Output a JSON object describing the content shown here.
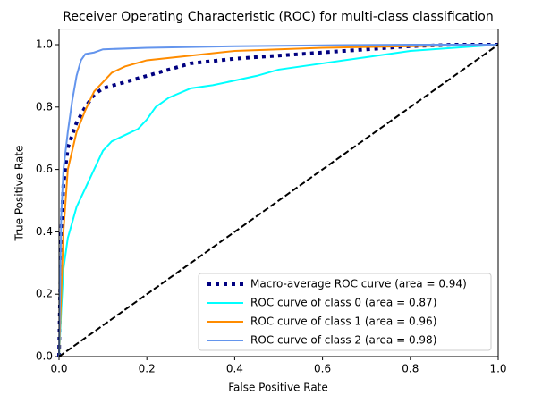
{
  "chart_data": {
    "type": "line",
    "title": "Receiver Operating Characteristic (ROC) for multi-class classification",
    "xlabel": "False Positive Rate",
    "ylabel": "True Positive Rate",
    "xlim": [
      0,
      1.0
    ],
    "ylim": [
      0,
      1.05
    ],
    "xticks": [
      {
        "value": 0,
        "label": "0.0"
      },
      0.2,
      0.4,
      0.6,
      0.8,
      {
        "value": 1,
        "label": "1.0"
      }
    ],
    "yticks": [
      {
        "value": 0,
        "label": "0.0"
      },
      0.2,
      0.4,
      0.6,
      0.8,
      {
        "value": 1,
        "label": "1.0"
      }
    ],
    "grid": false,
    "legend": "lower right",
    "series": [
      {
        "name": "Macro-average ROC curve (area = 0.94)",
        "color": "#000080",
        "linestyle": "dotted",
        "linewidth": 4,
        "x": [
          0,
          0.005,
          0.01,
          0.02,
          0.04,
          0.06,
          0.08,
          0.1,
          0.15,
          0.2,
          0.25,
          0.3,
          0.4,
          0.5,
          0.6,
          0.7,
          0.8,
          0.9,
          1
        ],
        "values": [
          0,
          0.4,
          0.55,
          0.67,
          0.75,
          0.8,
          0.84,
          0.86,
          0.88,
          0.9,
          0.92,
          0.94,
          0.955,
          0.965,
          0.975,
          0.985,
          0.995,
          1.0,
          1
        ]
      },
      {
        "name": "ROC curve of class 0 (area = 0.87)",
        "color": "#00ffff",
        "linestyle": "solid",
        "linewidth": 2,
        "x": [
          0,
          0.005,
          0.01,
          0.02,
          0.04,
          0.06,
          0.08,
          0.1,
          0.12,
          0.15,
          0.18,
          0.2,
          0.22,
          0.25,
          0.3,
          0.35,
          0.4,
          0.45,
          0.5,
          0.6,
          0.7,
          0.8,
          0.9,
          1
        ],
        "values": [
          0,
          0.15,
          0.28,
          0.38,
          0.48,
          0.54,
          0.6,
          0.66,
          0.69,
          0.71,
          0.73,
          0.76,
          0.8,
          0.83,
          0.86,
          0.87,
          0.885,
          0.9,
          0.92,
          0.94,
          0.96,
          0.98,
          0.99,
          1
        ]
      },
      {
        "name": "ROC curve of class 1 (area = 0.96)",
        "color": "#ff8c00",
        "linestyle": "solid",
        "linewidth": 2,
        "x": [
          0,
          0.005,
          0.01,
          0.02,
          0.04,
          0.06,
          0.08,
          0.1,
          0.12,
          0.15,
          0.2,
          0.3,
          0.4,
          0.6,
          0.8,
          1
        ],
        "values": [
          0,
          0.2,
          0.4,
          0.6,
          0.72,
          0.79,
          0.85,
          0.88,
          0.91,
          0.93,
          0.95,
          0.965,
          0.98,
          0.99,
          0.995,
          1
        ]
      },
      {
        "name": "ROC curve of class 2 (area = 0.98)",
        "color": "#6495ed",
        "linestyle": "solid",
        "linewidth": 2,
        "x": [
          0,
          0.005,
          0.01,
          0.02,
          0.03,
          0.04,
          0.05,
          0.06,
          0.08,
          0.1,
          0.2,
          0.4,
          0.6,
          0.8,
          1
        ],
        "values": [
          0,
          0.45,
          0.6,
          0.72,
          0.82,
          0.9,
          0.95,
          0.97,
          0.975,
          0.985,
          0.99,
          0.995,
          0.998,
          1.0,
          1
        ]
      },
      {
        "color": "#000000",
        "linestyle": "dashed",
        "linewidth": 2,
        "x": [
          0,
          1
        ],
        "values": [
          0,
          1
        ]
      }
    ]
  }
}
